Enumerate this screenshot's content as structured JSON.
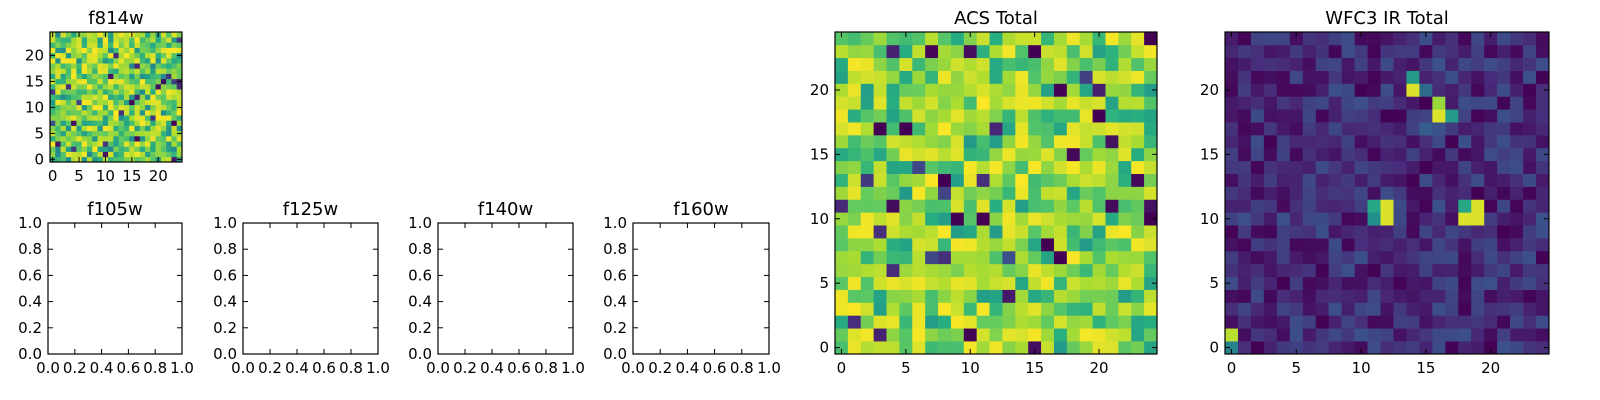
{
  "chart_data": [
    {
      "id": "f814w",
      "type": "heatmap",
      "title": "f814w",
      "colormap": "viridis",
      "size": 25,
      "xticks": [
        "0",
        "5",
        "10",
        "15",
        "20"
      ],
      "yticks": [
        "0",
        "5",
        "10",
        "15",
        "20"
      ],
      "xlim": [
        -0.5,
        24.5
      ],
      "ylim": [
        -0.5,
        24.5
      ],
      "origin": "lower",
      "pattern": "noise",
      "value_range": [
        0.35,
        1.0
      ],
      "note_values": "pixel intensities not labelled; normalized 0-1 colour scale"
    },
    {
      "id": "f105w",
      "type": "empty",
      "title": "f105w",
      "xticks": [
        "0.0",
        "0.2",
        "0.4",
        "0.6",
        "0.8",
        "1.0"
      ],
      "yticks": [
        "0.0",
        "0.2",
        "0.4",
        "0.6",
        "0.8",
        "1.0"
      ],
      "xlim": [
        0,
        1
      ],
      "ylim": [
        0,
        1
      ]
    },
    {
      "id": "f125w",
      "type": "empty",
      "title": "f125w",
      "xticks": [
        "0.0",
        "0.2",
        "0.4",
        "0.6",
        "0.8",
        "1.0"
      ],
      "yticks": [
        "0.0",
        "0.2",
        "0.4",
        "0.6",
        "0.8",
        "1.0"
      ],
      "xlim": [
        0,
        1
      ],
      "ylim": [
        0,
        1
      ]
    },
    {
      "id": "f140w",
      "type": "empty",
      "title": "f140w",
      "xticks": [
        "0.0",
        "0.2",
        "0.4",
        "0.6",
        "0.8",
        "1.0"
      ],
      "yticks": [
        "0.0",
        "0.2",
        "0.4",
        "0.6",
        "0.8",
        "1.0"
      ],
      "xlim": [
        0,
        1
      ],
      "ylim": [
        0,
        1
      ]
    },
    {
      "id": "f160w",
      "type": "empty",
      "title": "f160w",
      "xticks": [
        "0.0",
        "0.2",
        "0.4",
        "0.6",
        "0.8",
        "1.0"
      ],
      "yticks": [
        "0.0",
        "0.2",
        "0.4",
        "0.6",
        "0.8",
        "1.0"
      ],
      "xlim": [
        0,
        1
      ],
      "ylim": [
        0,
        1
      ]
    },
    {
      "id": "acs-total",
      "type": "heatmap",
      "title": "ACS Total",
      "colormap": "viridis",
      "size": 25,
      "xticks": [
        "0",
        "5",
        "10",
        "15",
        "20"
      ],
      "yticks": [
        "0",
        "5",
        "10",
        "15",
        "20"
      ],
      "xlim": [
        -0.5,
        24.5
      ],
      "ylim": [
        -0.5,
        24.5
      ],
      "origin": "lower",
      "pattern": "noise",
      "value_range": [
        0.45,
        1.0
      ],
      "dark_pixels": [
        [
          3,
          17
        ],
        [
          5,
          17
        ],
        [
          15,
          23
        ],
        [
          20,
          18
        ],
        [
          9,
          10
        ],
        [
          11,
          10
        ],
        [
          16,
          8
        ],
        [
          17,
          7
        ],
        [
          24,
          10
        ],
        [
          8,
          13
        ]
      ]
    },
    {
      "id": "wfc3-ir-total",
      "type": "heatmap",
      "title": "WFC3 IR Total",
      "colormap": "viridis",
      "size": 25,
      "xticks": [
        "0",
        "5",
        "10",
        "15",
        "20"
      ],
      "yticks": [
        "0",
        "5",
        "10",
        "15",
        "20"
      ],
      "xlim": [
        -0.5,
        24.5
      ],
      "ylim": [
        -0.5,
        24.5
      ],
      "origin": "lower",
      "pattern": "background-with-sources",
      "value_range": [
        0.0,
        0.25
      ],
      "bright_pixels": [
        [
          14,
          20,
          0.95
        ],
        [
          14,
          21,
          0.55
        ],
        [
          15,
          20,
          0.35
        ],
        [
          16,
          19,
          0.85
        ],
        [
          16,
          18,
          0.95
        ],
        [
          17,
          18,
          0.55
        ],
        [
          16,
          17,
          0.25
        ],
        [
          15,
          17,
          0.3
        ],
        [
          11,
          11,
          0.6
        ],
        [
          12,
          11,
          0.95
        ],
        [
          11,
          10,
          0.5
        ],
        [
          12,
          10,
          0.95
        ],
        [
          18,
          11,
          0.6
        ],
        [
          19,
          11,
          0.95
        ],
        [
          18,
          10,
          0.95
        ],
        [
          19,
          10,
          0.95
        ],
        [
          0,
          1,
          0.9
        ],
        [
          0,
          0,
          0.45
        ]
      ]
    }
  ]
}
